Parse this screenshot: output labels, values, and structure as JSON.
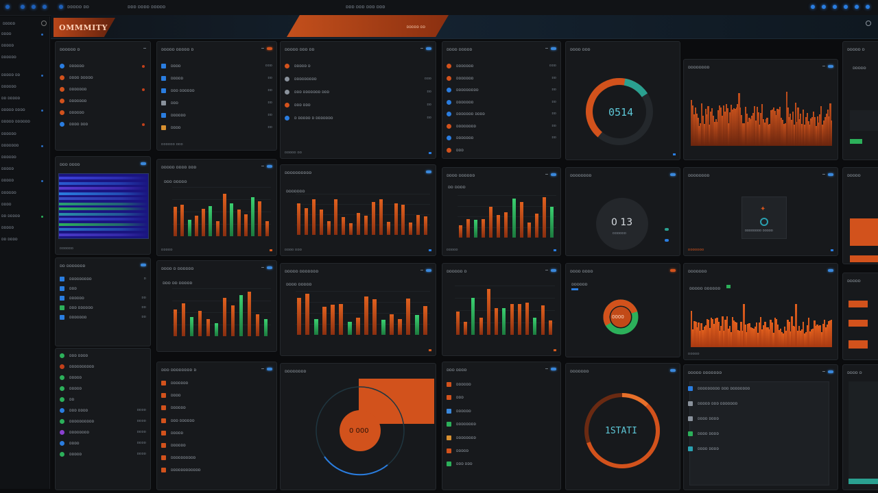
{
  "topbar": {
    "left_text": "ᴅᴅᴅᴅᴅ ᴅᴅ",
    "center_a": "ᴅᴅᴅ ᴅᴅᴅᴅ ᴅᴅᴅᴅᴅ",
    "center_b": "ᴅᴅᴅ ᴅᴅᴅ ᴅᴅᴅ ᴅᴅᴅ"
  },
  "brand": {
    "name": "OMMMITY"
  },
  "hero": {
    "slab_text": "ᴅᴅᴅᴅᴅ ᴅᴅ"
  },
  "sidebar": {
    "title": "ᴅᴅᴅᴅᴅ",
    "items": [
      "ᴅᴅᴅᴅ",
      "ᴅᴅᴅᴅᴅ",
      "ᴅᴅᴅᴅᴅᴅ",
      "ᴅᴅᴅᴅᴅ ᴅᴅ",
      "ᴅᴅᴅᴅᴅᴅ",
      "ᴅᴅ ᴅᴅᴅᴅᴅ",
      "ᴅᴅᴅᴅᴅ ᴅᴅᴅᴅ",
      "ᴅᴅᴅᴅᴅ ᴅᴅᴅᴅᴅᴅ",
      "ᴅᴅᴅᴅᴅᴅ",
      "ᴅᴅᴅᴅᴅᴅᴅ",
      "ᴅᴅᴅᴅᴅᴅ",
      "ᴅᴅᴅᴅᴅ",
      "ᴅᴅᴅᴅᴅ",
      "ᴅᴅᴅᴅᴅᴅ",
      "ᴅᴅᴅᴅ",
      "ᴅᴅ ᴅᴅᴅᴅᴅ",
      "ᴅᴅᴅᴅᴅ",
      "ᴅᴅ ᴅᴅᴅᴅ"
    ]
  },
  "colors": {
    "orange": "#d2521c",
    "green": "#2cb05a",
    "blue": "#3a88dc",
    "teal": "#2aa090",
    "bg": "#0b0c0e",
    "panel": "#17191c"
  },
  "stats": {
    "donut1": "0514",
    "donut2": "0 13",
    "donut3": "0000",
    "donut4": "1STATI",
    "dial": "0 000"
  },
  "p_list1": {
    "title": "ᴅᴅᴅᴅᴅᴅ ᴅ",
    "rows": [
      {
        "label": "ᴅᴅᴅᴅᴅᴅ",
        "icon": "blue-circle-icon"
      },
      {
        "label": "ᴅᴅᴅᴅ ᴅᴅᴅᴅᴅ",
        "icon": "orange-circle-icon"
      },
      {
        "label": "ᴅᴅᴅᴅᴅᴅᴅ",
        "icon": "orange-circle-icon"
      },
      {
        "label": "ᴅᴅᴅᴅᴅᴅᴅ",
        "icon": "orange-circle-icon"
      },
      {
        "label": "ᴅᴅᴅᴅᴅᴅ",
        "icon": "orange-circle-icon"
      },
      {
        "label": "ᴅᴅᴅᴅ ᴅᴅᴅ",
        "icon": "blue-circle-icon"
      }
    ]
  },
  "p_list2": {
    "title": "ᴅᴅᴅᴅᴅ ᴅᴅᴅᴅᴅ ᴅ",
    "rows": [
      {
        "label": "ᴅᴅᴅᴅ",
        "val": "ᴅᴅᴅ"
      },
      {
        "label": "ᴅᴅᴅᴅᴅ",
        "val": "ᴅᴅ"
      },
      {
        "label": "ᴅᴅᴅ ᴅᴅᴅᴅᴅᴅ",
        "val": "ᴅᴅ"
      },
      {
        "label": "ᴅᴅᴅ",
        "val": "ᴅᴅ"
      },
      {
        "label": "ᴅᴅᴅᴅᴅᴅ",
        "val": "ᴅᴅ"
      },
      {
        "label": "ᴅᴅᴅᴅ",
        "val": "ᴅᴅ"
      }
    ],
    "footer": "ᴅᴅᴅᴅᴅᴅ ᴅᴅᴅ"
  },
  "p_list3": {
    "title": "ᴅᴅᴅᴅᴅ ᴅᴅᴅ ᴅᴅ",
    "rows": [
      {
        "label": "ᴅᴅᴅᴅᴅ ᴅ",
        "val": ""
      },
      {
        "label": "ᴅᴅᴅᴅᴅᴅᴅᴅᴅ",
        "val": "ᴅᴅᴅ"
      },
      {
        "label": "ᴅᴅᴅ ᴅᴅᴅᴅᴅᴅᴅ ᴅᴅᴅ",
        "val": "ᴅᴅ"
      },
      {
        "label": "ᴅᴅᴅ ᴅᴅᴅ",
        "val": "ᴅᴅ"
      },
      {
        "label": "ᴅ ᴅᴅᴅᴅᴅ ᴅ ᴅᴅᴅᴅᴅᴅᴅ",
        "val": "ᴅᴅ"
      }
    ],
    "footer": "ᴅᴅᴅᴅᴅ ᴅᴅ"
  },
  "p_list4": {
    "title": "ᴅᴅᴅᴅ ᴅᴅᴅᴅᴅ",
    "rows": [
      {
        "label": "ᴅᴅᴅᴅᴅᴅᴅ",
        "val": "ᴅᴅᴅ"
      },
      {
        "label": "ᴅᴅᴅᴅᴅᴅᴅ",
        "val": "ᴅᴅ"
      },
      {
        "label": "ᴅᴅᴅᴅᴅᴅᴅᴅᴅ",
        "val": "ᴅᴅ"
      },
      {
        "label": "ᴅᴅᴅᴅᴅᴅᴅ",
        "val": "ᴅᴅ"
      },
      {
        "label": "ᴅᴅᴅᴅᴅᴅᴅ ᴅᴅᴅᴅ",
        "val": "ᴅᴅ"
      },
      {
        "label": "ᴅᴅᴅᴅᴅᴅᴅᴅ",
        "val": "ᴅᴅ"
      },
      {
        "label": "ᴅᴅᴅᴅᴅᴅᴅ",
        "val": "ᴅᴅ"
      },
      {
        "label": "ᴅᴅᴅ",
        "val": ""
      }
    ]
  },
  "p_donut1": {
    "title": "ᴅᴅᴅᴅ ᴅᴅᴅ"
  },
  "p_area1": {
    "title": "ᴅᴅᴅᴅᴅᴅᴅᴅ"
  },
  "p_spectrum": {
    "title": "ᴅᴅᴅ ᴅᴅᴅᴅ",
    "footer": "ᴅᴅᴅᴅᴅᴅ"
  },
  "p_bar1": {
    "title": "ᴅᴅᴅᴅᴅ ᴅᴅᴅᴅ ᴅᴅᴅ",
    "legend": "ᴅᴅᴅ ᴅᴅᴅᴅᴅ",
    "footer": "ᴅᴅᴅᴅᴅ"
  },
  "p_bar2": {
    "title": "ᴅᴅᴅᴅᴅᴅᴅᴅᴅᴅ",
    "legend": "ᴅᴅᴅᴅᴅᴅᴅ",
    "footer": "ᴅᴅᴅᴅ ᴅᴅᴅ"
  },
  "p_bar3": {
    "title": "ᴅᴅᴅᴅ ᴅᴅᴅᴅᴅᴅ",
    "legend": "ᴅᴅ ᴅᴅᴅᴅ",
    "footer": "ᴅᴅᴅᴅᴅ"
  },
  "p_donut2": {
    "title": "ᴅᴅᴅᴅᴅᴅᴅᴅ",
    "sub": "ᴅᴅᴅᴅᴅᴅ"
  },
  "p_info": {
    "title": "ᴅᴅᴅᴅᴅᴅᴅᴅ",
    "rows": [
      "ᴅᴅᴅᴅᴅᴅ",
      "ᴅᴅᴅᴅ",
      "ᴅᴅᴅᴅᴅᴅ",
      "ᴅᴅᴅᴅᴅᴅ"
    ],
    "center": "ᴅᴅᴅᴅᴅᴅᴅᴅ ᴅᴅᴅᴅᴅ",
    "footer": "ᴅᴅᴅᴅᴅᴅᴅ"
  },
  "p_list5": {
    "title": "ᴅᴅ ᴅᴅᴅᴅᴅᴅᴅ",
    "rows": [
      {
        "label": "ᴅᴅᴅᴅᴅᴅᴅᴅᴅ",
        "val": "ᴅ"
      },
      {
        "label": "ᴅᴅᴅ",
        "val": ""
      },
      {
        "label": "ᴅᴅᴅᴅᴅᴅ",
        "val": "ᴅᴅ"
      },
      {
        "label": "ᴅᴅᴅ ᴅᴅᴅᴅᴅᴅ",
        "val": "ᴅᴅ"
      },
      {
        "label": "ᴅᴅᴅᴅᴅᴅᴅ",
        "val": "ᴅᴅ"
      }
    ]
  },
  "p_list6": {
    "rows": [
      {
        "label": "ᴅᴅᴅ ᴅᴅᴅᴅ",
        "val": ""
      },
      {
        "label": "ᴅᴅᴅᴅᴅᴅᴅᴅᴅᴅ",
        "val": ""
      },
      {
        "label": "ᴅᴅᴅᴅᴅ",
        "val": ""
      },
      {
        "label": "ᴅᴅᴅᴅᴅ",
        "val": ""
      },
      {
        "label": "ᴅᴅ",
        "val": ""
      },
      {
        "label": "ᴅᴅᴅ ᴅᴅᴅᴅ",
        "val": "ᴅᴅᴅᴅ"
      },
      {
        "label": "ᴅᴅᴅᴅᴅᴅᴅᴅᴅᴅ",
        "val": "ᴅᴅᴅᴅ"
      },
      {
        "label": "ᴅᴅᴅᴅᴅᴅᴅᴅ",
        "val": "ᴅᴅᴅᴅ"
      },
      {
        "label": "ᴅᴅᴅᴅ",
        "val": "ᴅᴅᴅᴅ"
      },
      {
        "label": "ᴅᴅᴅᴅᴅ",
        "val": "ᴅᴅᴅᴅ"
      }
    ]
  },
  "p_bar4": {
    "title": "ᴅᴅᴅᴅ ᴅ ᴅᴅᴅᴅᴅᴅ",
    "legend": "ᴅᴅᴅ ᴅᴅ ᴅᴅᴅᴅᴅ"
  },
  "p_bar5": {
    "title": "ᴅᴅᴅᴅᴅ ᴅᴅᴅᴅᴅᴅᴅ",
    "legend": "ᴅᴅᴅᴅ ᴅᴅᴅᴅᴅ"
  },
  "p_bar6": {
    "title": "ᴅᴅᴅᴅᴅᴅ ᴅ"
  },
  "p_donut3": {
    "title": "ᴅᴅᴅᴅ ᴅᴅᴅᴅ",
    "legend": "ᴅᴅᴅᴅᴅᴅ"
  },
  "p_area2": {
    "title": "ᴅᴅᴅᴅᴅᴅᴅ",
    "legend": "ᴅᴅᴅᴅᴅ ᴅᴅᴅᴅᴅᴅ",
    "footer": "ᴅᴅᴅᴅᴅ"
  },
  "p_list7": {
    "title": "ᴅᴅᴅ ᴅᴅᴅᴅᴅᴅᴅᴅ ᴅ",
    "rows": [
      {
        "label": "ᴅᴅᴅᴅᴅᴅᴅ",
        "icon": "#d2521c"
      },
      {
        "label": "ᴅᴅᴅᴅ",
        "icon": "#d2521c"
      },
      {
        "label": "ᴅᴅᴅᴅᴅᴅ",
        "icon": "#d2521c"
      },
      {
        "label": "ᴅᴅᴅ ᴅᴅᴅᴅᴅᴅ",
        "icon": "#d2521c"
      },
      {
        "label": "ᴅᴅᴅᴅᴅ",
        "icon": "#d2521c"
      },
      {
        "label": "ᴅᴅᴅᴅᴅᴅ",
        "icon": "#d2521c"
      },
      {
        "label": "ᴅᴅᴅᴅᴅᴅᴅᴅᴅᴅ",
        "icon": "#d2521c"
      },
      {
        "label": "ᴅᴅᴅᴅᴅᴅᴅᴅᴅᴅᴅᴅ",
        "icon": "#d2521c"
      }
    ]
  },
  "p_dial": {
    "title": "ᴅᴅᴅᴅᴅᴅᴅᴅ"
  },
  "p_list8": {
    "title": "ᴅᴅᴅ ᴅᴅᴅᴅ",
    "rows": [
      {
        "label": "ᴅᴅᴅᴅᴅᴅ",
        "icon": "#d2521c"
      },
      {
        "label": "ᴅᴅᴅ",
        "icon": "#d2521c"
      },
      {
        "label": "ᴅᴅᴅᴅᴅᴅ",
        "icon": "#3a88dc"
      },
      {
        "label": "ᴅᴅᴅᴅᴅᴅᴅᴅ",
        "icon": "#2cb05a"
      },
      {
        "label": "ᴅᴅᴅᴅᴅᴅᴅᴅ",
        "icon": "#d89030"
      },
      {
        "label": "ᴅᴅᴅᴅᴅ",
        "icon": "#d2521c"
      },
      {
        "label": "ᴅᴅᴅ ᴅᴅᴅ",
        "icon": "#2cb05a"
      }
    ]
  },
  "p_donut4": {
    "title": "ᴅᴅᴅᴅᴅᴅᴅ"
  },
  "p_list9": {
    "title": "ᴅᴅᴅᴅᴅ ᴅᴅᴅᴅᴅᴅᴅ",
    "rows": [
      {
        "label": "ᴅᴅᴅᴅᴅᴅᴅᴅᴅ ᴅᴅᴅ ᴅᴅᴅᴅᴅᴅᴅᴅ"
      },
      {
        "label": "ᴅᴅᴅᴅᴅ ᴅᴅᴅ ᴅᴅᴅᴅᴅᴅᴅ"
      },
      {
        "label": "ᴅᴅᴅᴅ ᴅᴅᴅᴅ"
      },
      {
        "label": "ᴅᴅᴅᴅ ᴅᴅᴅᴅ"
      },
      {
        "label": "ᴅᴅᴅᴅ ᴅᴅᴅᴅ"
      }
    ]
  },
  "right_col": {
    "t1": "ᴅᴅᴅᴅᴅ ᴅ",
    "t2": "ᴅᴅᴅᴅᴅ",
    "t3": "ᴅᴅᴅᴅᴅ",
    "t4": "ᴅᴅᴅᴅᴅ",
    "t5": "ᴅᴅᴅᴅ ᴅ"
  }
}
